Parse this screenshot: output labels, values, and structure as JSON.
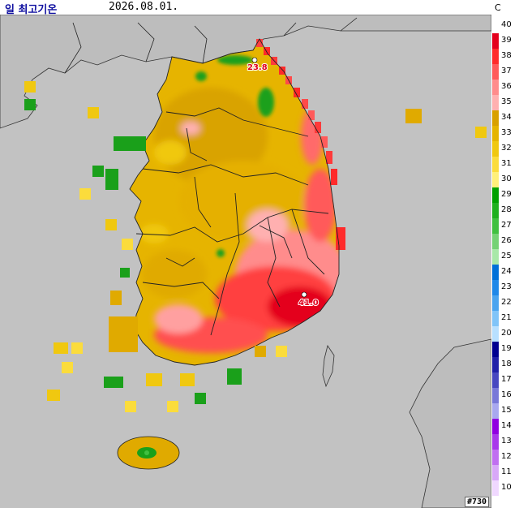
{
  "header": {
    "title": "일 최고기온",
    "date": "2026.08.01.",
    "unit": "C"
  },
  "legend": {
    "labels": [
      "40",
      "39",
      "38",
      "37",
      "36",
      "35",
      "34",
      "33",
      "32",
      "31",
      "30",
      "29",
      "28",
      "27",
      "26",
      "25",
      "24",
      "23",
      "22",
      "21",
      "20",
      "19",
      "18",
      "17",
      "16",
      "15",
      "14",
      "13",
      "12",
      "11",
      "10"
    ],
    "colors": [
      "#ffffff",
      "#e4001c",
      "#ff2a2a",
      "#ff5a5a",
      "#ff8c8c",
      "#ffb0b0",
      "#d8a000",
      "#e5b400",
      "#f0c810",
      "#fbdc3c",
      "#fff07a",
      "#00a000",
      "#1fb01f",
      "#40c040",
      "#75d275",
      "#a8e8a8",
      "#0070d8",
      "#1f88e8",
      "#4aa4ef",
      "#80c4f8",
      "#b8e0ff",
      "#000090",
      "#2020a8",
      "#4848c0",
      "#7878d8",
      "#a8a8ef",
      "#9000e0",
      "#a838ea",
      "#c070f0",
      "#d8a8f8",
      "#f0d8ff"
    ]
  },
  "stations": [
    {
      "label": "23.8"
    },
    {
      "label": "41.0"
    }
  ],
  "badge": "#730",
  "colors": {
    "sea": "#c0c0c0",
    "land_gray": "#bebebe",
    "hot": "#e0001c",
    "warm": "#e6b400",
    "cool": "#1aa01a"
  }
}
